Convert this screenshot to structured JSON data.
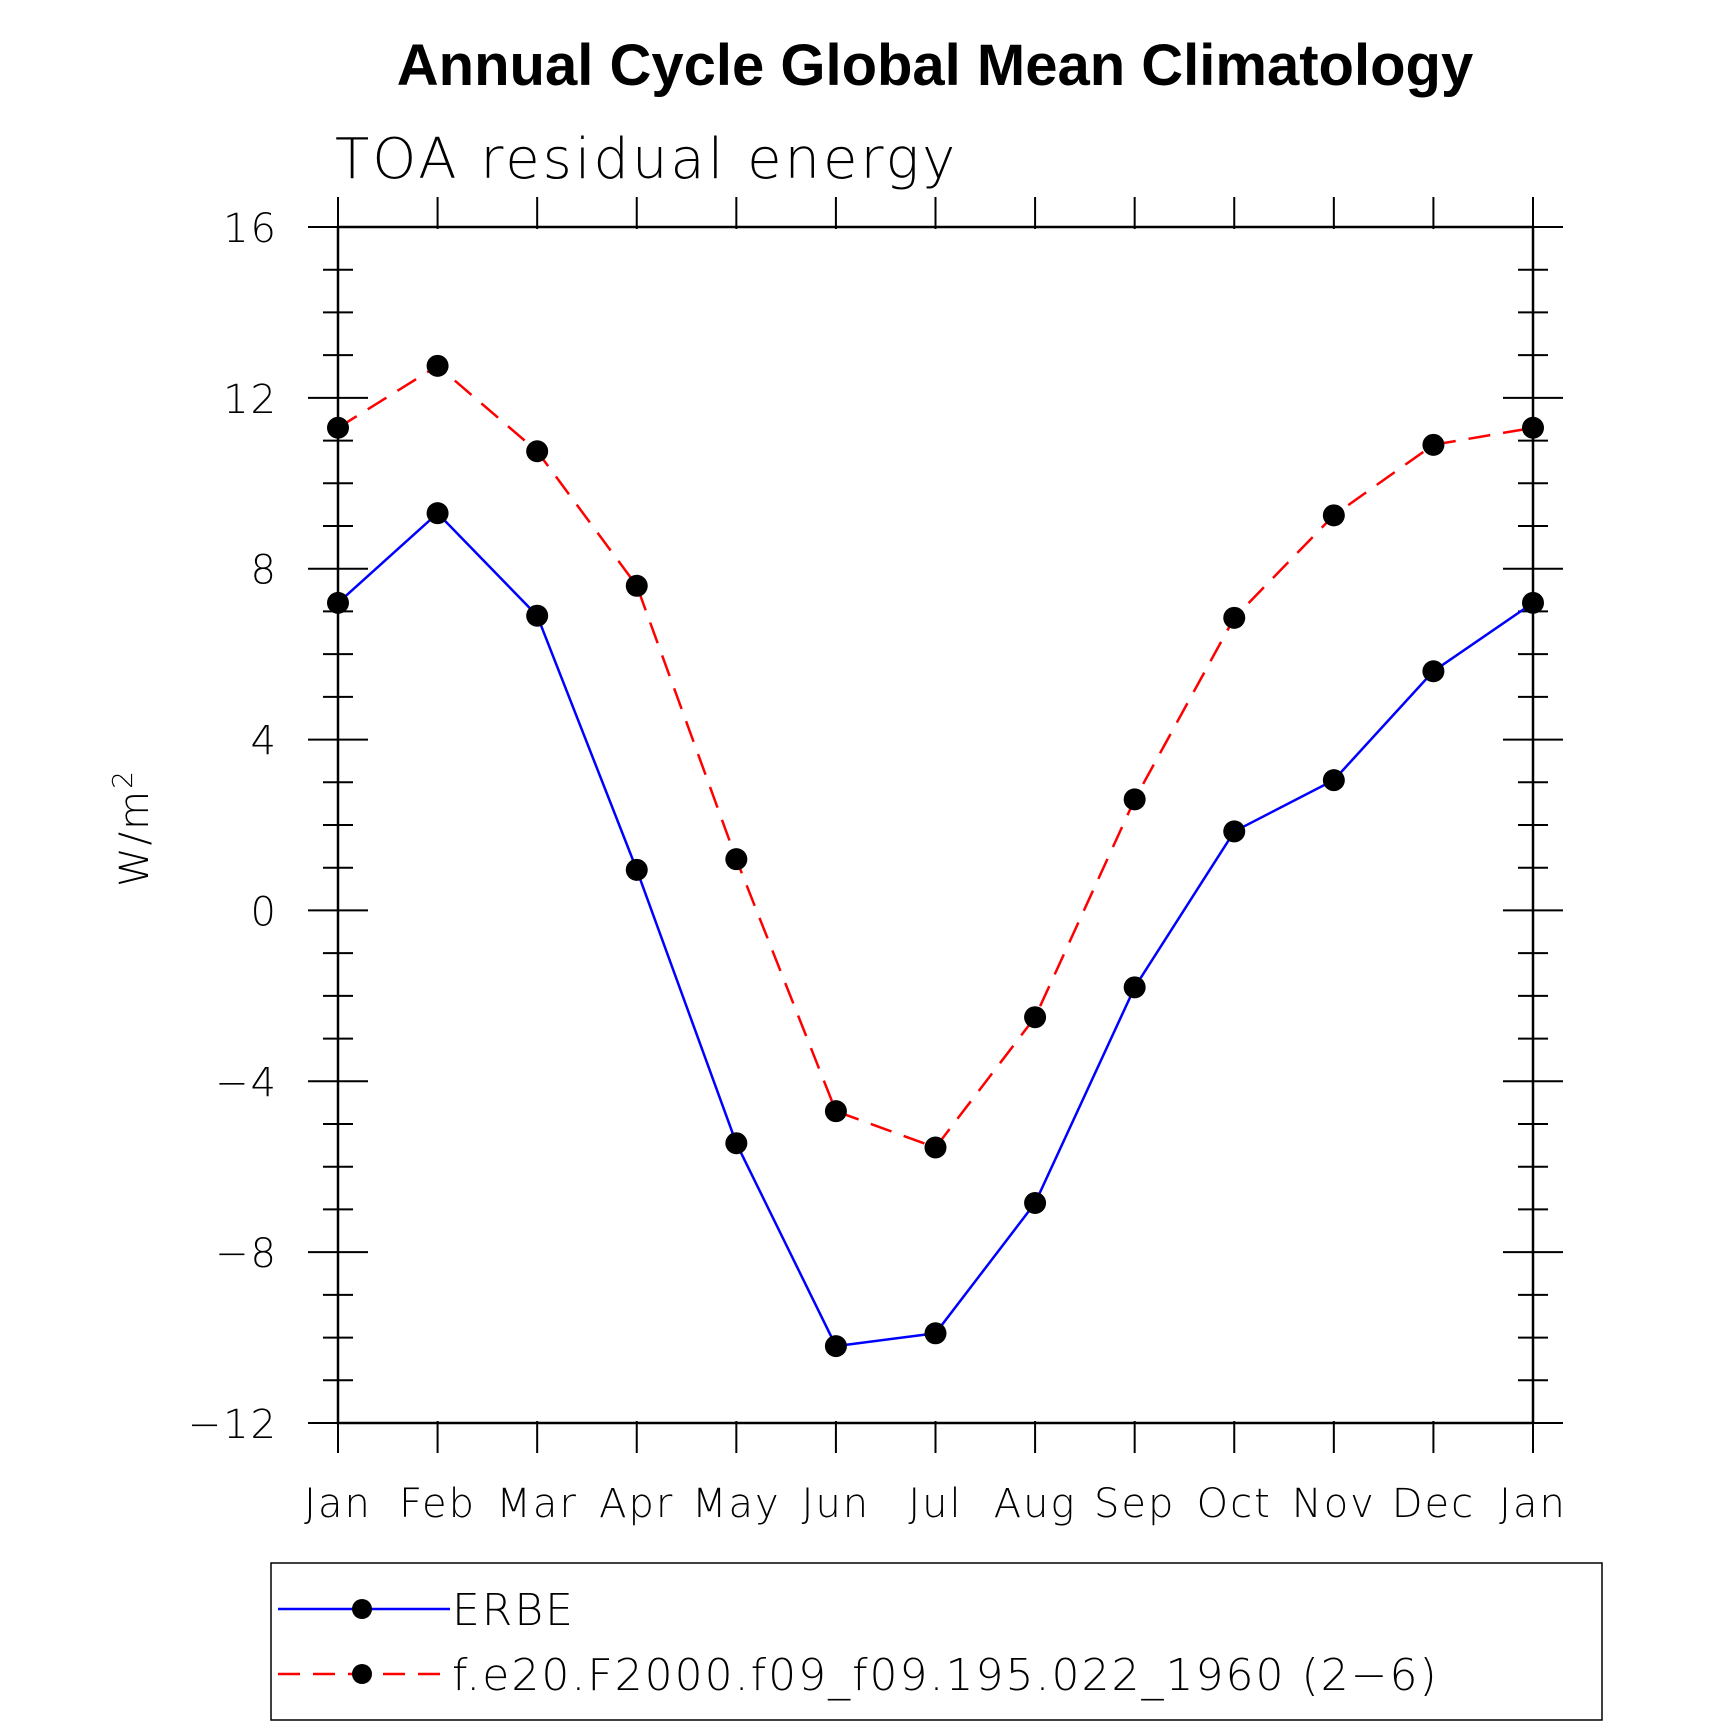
{
  "chart_data": {
    "type": "line",
    "title": "Annual Cycle Global Mean Climatology",
    "subtitle": "TOA residual energy",
    "ylabel_base": "W/m",
    "ylabel_sup": "2",
    "xlabel": "",
    "categories": [
      "Jan",
      "Feb",
      "Mar",
      "Apr",
      "May",
      "Jun",
      "Jul",
      "Aug",
      "Sep",
      "Oct",
      "Nov",
      "Dec",
      "Jan"
    ],
    "ylim": [
      -12,
      16
    ],
    "yticks": [
      16,
      12,
      8,
      4,
      0,
      -4,
      -8,
      -12
    ],
    "ytick_labels": [
      "16",
      "12",
      "8",
      "4",
      "0",
      "−4",
      "−8",
      "−12"
    ],
    "grid": false,
    "legend_position": "bottom",
    "series": [
      {
        "name": "ERBE",
        "color": "#0000ff",
        "dash": "solid",
        "values": [
          7.2,
          9.3,
          6.9,
          0.95,
          -5.45,
          -10.2,
          -9.9,
          -6.85,
          -1.8,
          1.85,
          3.05,
          5.6,
          7.2
        ]
      },
      {
        "name": "f.e20.F2000.f09_f09.195.022_1960 (2−6)",
        "color": "#ff0000",
        "dash": "dashed",
        "values": [
          11.3,
          12.75,
          10.75,
          7.6,
          1.2,
          -4.7,
          -5.55,
          -2.5,
          2.6,
          6.85,
          9.25,
          10.9,
          11.3
        ]
      }
    ]
  }
}
